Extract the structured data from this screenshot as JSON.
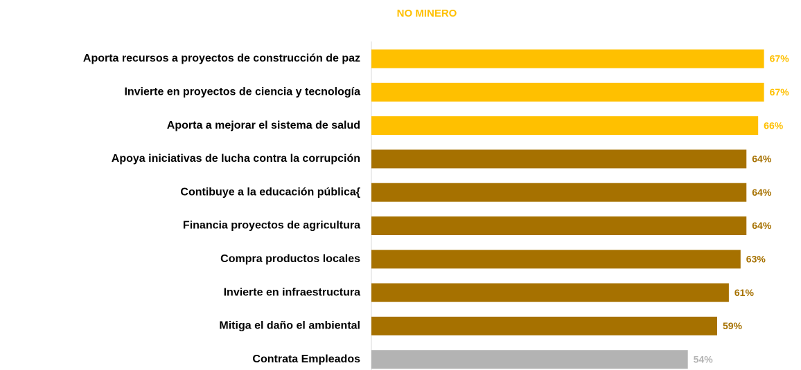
{
  "chart_data": {
    "type": "bar",
    "orientation": "horizontal",
    "title": "NO MINERO",
    "categories": [
      "Aporta recursos a proyectos de construcción de paz",
      "Invierte en proyectos de ciencia y tecnología",
      "Aporta a mejorar el sistema de salud",
      "Apoya iniciativas de lucha contra la corrupción",
      "Contibuye a la educación pública{",
      "Financia proyectos de agricultura",
      "Compra productos locales",
      "Invierte en infraestructura",
      "Mitiga el daño el ambiental",
      "Contrata Empleados"
    ],
    "values": [
      67,
      67,
      66,
      64,
      64,
      64,
      63,
      61,
      59,
      54
    ],
    "value_labels": [
      "67%",
      "67%",
      "66%",
      "64%",
      "64%",
      "64%",
      "63%",
      "61%",
      "59%",
      "54%"
    ],
    "colors": [
      "#FFC000",
      "#FFC000",
      "#FFC000",
      "#A67100",
      "#A67100",
      "#A67100",
      "#A67100",
      "#A67100",
      "#A67100",
      "#B3B3B3"
    ],
    "xlim": [
      0,
      70
    ]
  }
}
